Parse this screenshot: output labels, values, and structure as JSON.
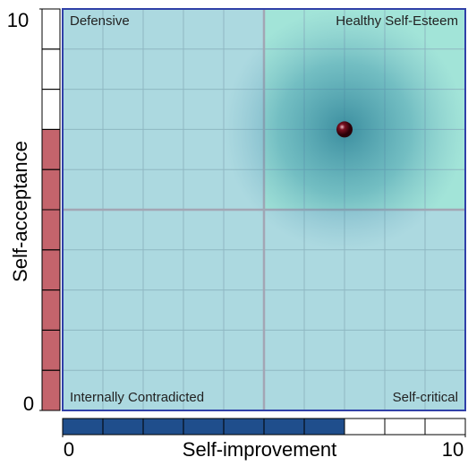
{
  "chart_data": {
    "type": "scatter",
    "x_label": "Self-improvement",
    "y_label": "Self-acceptance",
    "x": [
      7
    ],
    "y": [
      7
    ],
    "xlim": [
      0,
      10
    ],
    "ylim": [
      0,
      10
    ],
    "xticks": [
      0,
      10
    ],
    "yticks": [
      0,
      10
    ],
    "annotations": [
      "Defensive",
      "Healthy Self-Esteem",
      "Internally Contradicted",
      "Self-critical"
    ],
    "point_color": "#5a0a14",
    "x_bar_color": "#1f4e8c",
    "y_bar_color": "#c4646c",
    "grid": true
  }
}
